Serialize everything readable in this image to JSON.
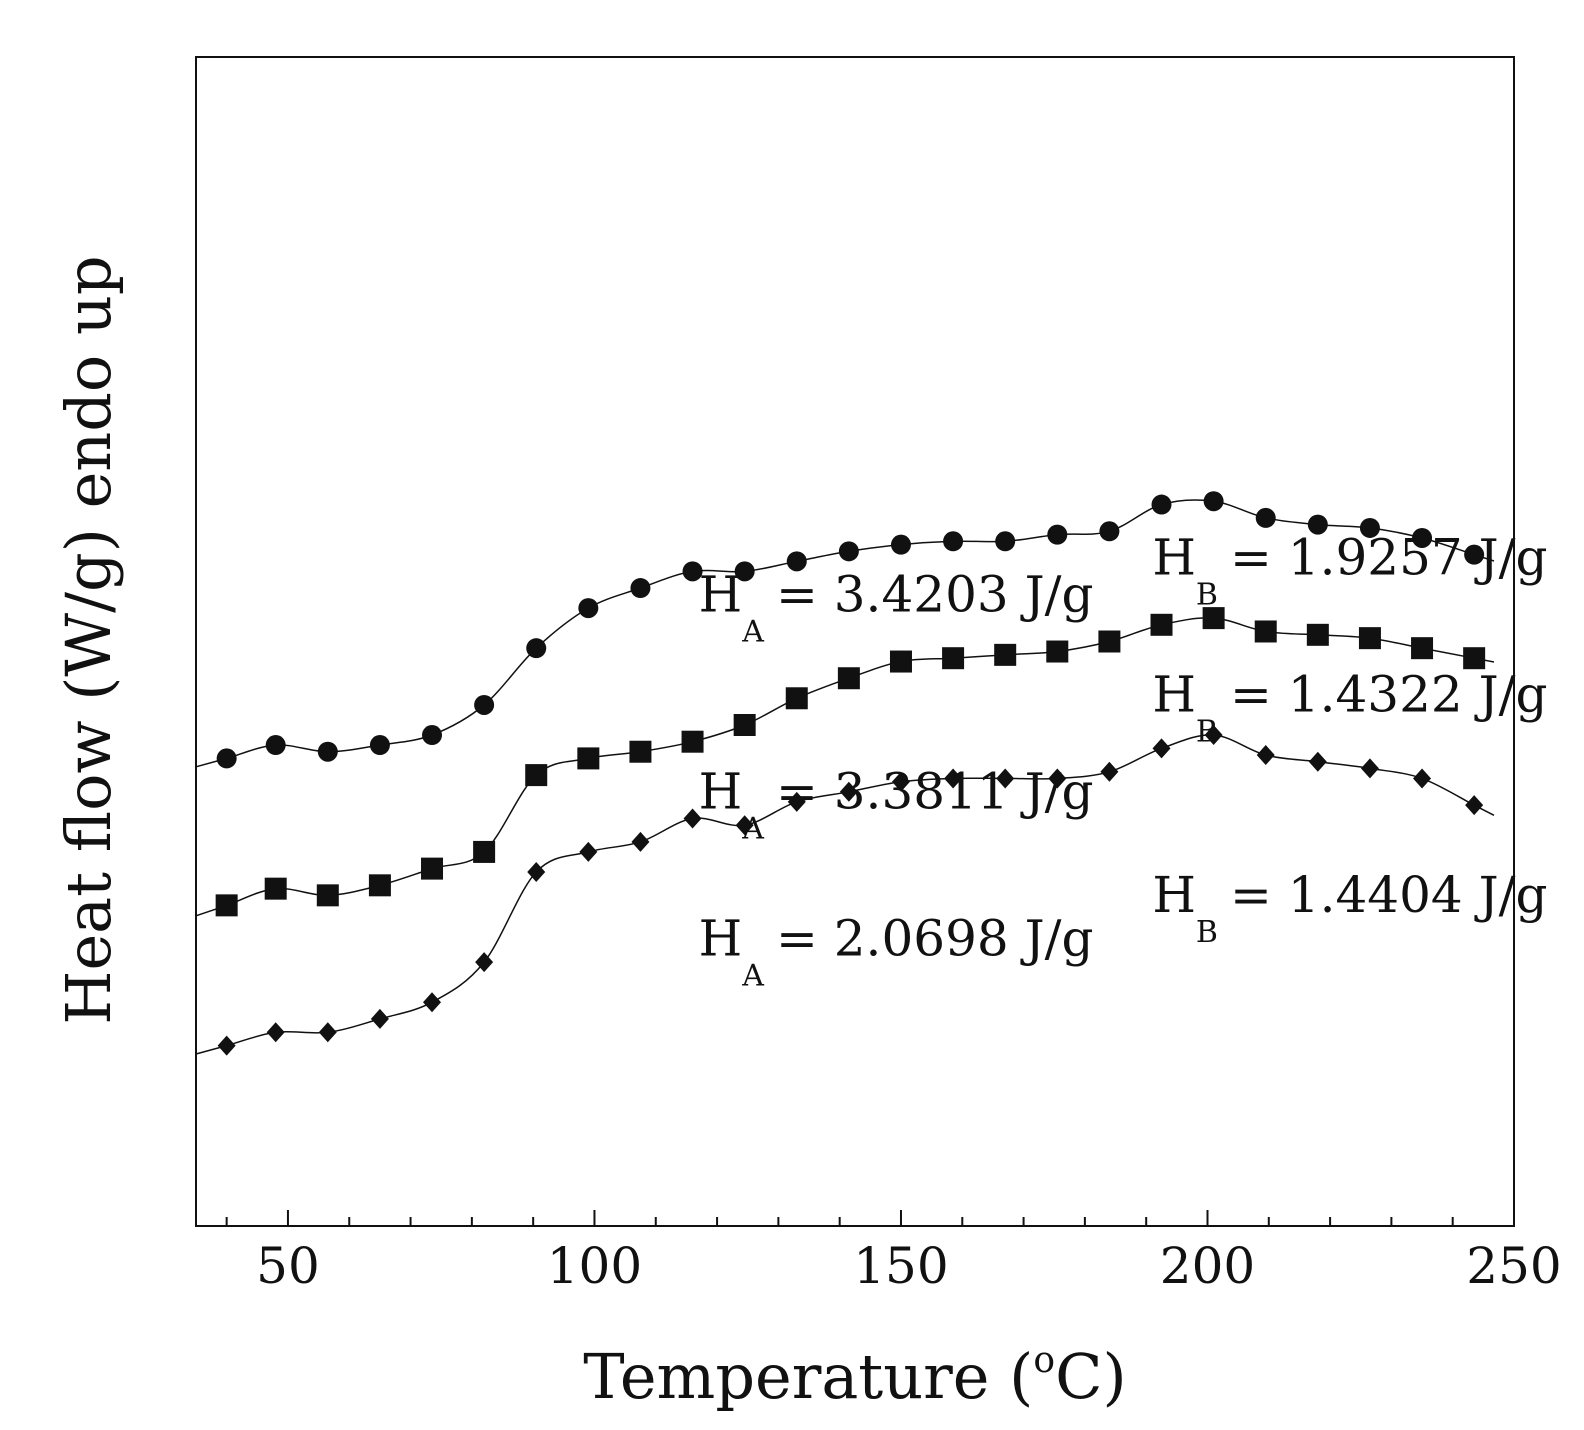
{
  "chart_data": {
    "type": "line",
    "title": "",
    "xlabel": "Temperature (",
    "xlabel_sup": "o",
    "xlabel_end": "C)",
    "ylabel": "Heat flow (W/g) endo up",
    "xlim": [
      35,
      250
    ],
    "x_tick_labels": [
      "50",
      "100",
      "150",
      "200",
      "250"
    ],
    "x_ticks": [
      50,
      100,
      150,
      200,
      250
    ],
    "y_ticks_visible": false,
    "grid": false,
    "legend": "none",
    "series": [
      {
        "name": "circle-series",
        "marker": "circle",
        "x": [
          40,
          48,
          56.5,
          65,
          73.5,
          82,
          90.5,
          99,
          107.5,
          116,
          124.5,
          133,
          141.5,
          150,
          158.5,
          167,
          175.5,
          184,
          192.5,
          201,
          209.5,
          218,
          226.5,
          235,
          243.5
        ],
        "y": [
          6.0,
          6.2,
          6.1,
          6.2,
          6.35,
          6.8,
          7.65,
          8.25,
          8.55,
          8.8,
          8.8,
          8.95,
          9.1,
          9.2,
          9.25,
          9.25,
          9.35,
          9.4,
          9.8,
          9.85,
          9.6,
          9.5,
          9.45,
          9.3,
          9.05
        ]
      },
      {
        "name": "square-series",
        "marker": "square",
        "x": [
          40,
          48,
          56.5,
          65,
          73.5,
          82,
          90.5,
          99,
          107.5,
          116,
          124.5,
          133,
          141.5,
          150,
          158.5,
          167,
          175.5,
          184,
          192.5,
          201,
          209.5,
          218,
          226.5,
          235,
          243.5
        ],
        "y": [
          3.8,
          4.05,
          3.95,
          4.1,
          4.35,
          4.6,
          5.75,
          6.0,
          6.1,
          6.25,
          6.5,
          6.9,
          7.2,
          7.45,
          7.5,
          7.55,
          7.6,
          7.75,
          8.0,
          8.1,
          7.9,
          7.85,
          7.8,
          7.65,
          7.5
        ]
      },
      {
        "name": "diamond-series",
        "marker": "diamond",
        "x": [
          40,
          48,
          56.5,
          65,
          73.5,
          82,
          90.5,
          99,
          107.5,
          116,
          124.5,
          133,
          141.5,
          150,
          158.5,
          167,
          175.5,
          184,
          192.5,
          201,
          209.5,
          218,
          226.5,
          235,
          243.5
        ],
        "y": [
          1.7,
          1.9,
          1.9,
          2.1,
          2.35,
          2.95,
          4.3,
          4.6,
          4.75,
          5.1,
          5.0,
          5.35,
          5.5,
          5.65,
          5.7,
          5.7,
          5.7,
          5.8,
          6.15,
          6.35,
          6.05,
          5.95,
          5.85,
          5.7,
          5.3
        ]
      }
    ],
    "annotations": [
      {
        "id": "ha-circle",
        "symbol": "H",
        "sub": "A",
        "text": "= 3.4203 J/g",
        "x": 117,
        "y": 8.2
      },
      {
        "id": "hb-circle",
        "symbol": "H",
        "sub": "B",
        "text": "= 1.9257 J/g",
        "x": 191,
        "y": 8.75
      },
      {
        "id": "ha-square",
        "symbol": "H",
        "sub": "A",
        "text": "= 3.3811 J/g",
        "x": 117,
        "y": 5.25
      },
      {
        "id": "hb-square",
        "symbol": "H",
        "sub": "B",
        "text": "= 1.4322 J/g",
        "x": 191,
        "y": 6.7
      },
      {
        "id": "ha-diamond",
        "symbol": "H",
        "sub": "A",
        "text": "= 2.0698 J/g",
        "x": 117,
        "y": 3.05
      },
      {
        "id": "hb-diamond",
        "symbol": "H",
        "sub": "B",
        "text": "= 1.4404 J/g",
        "x": 191,
        "y": 3.7
      }
    ],
    "ylim": [
      -1.0,
      16.5
    ]
  }
}
